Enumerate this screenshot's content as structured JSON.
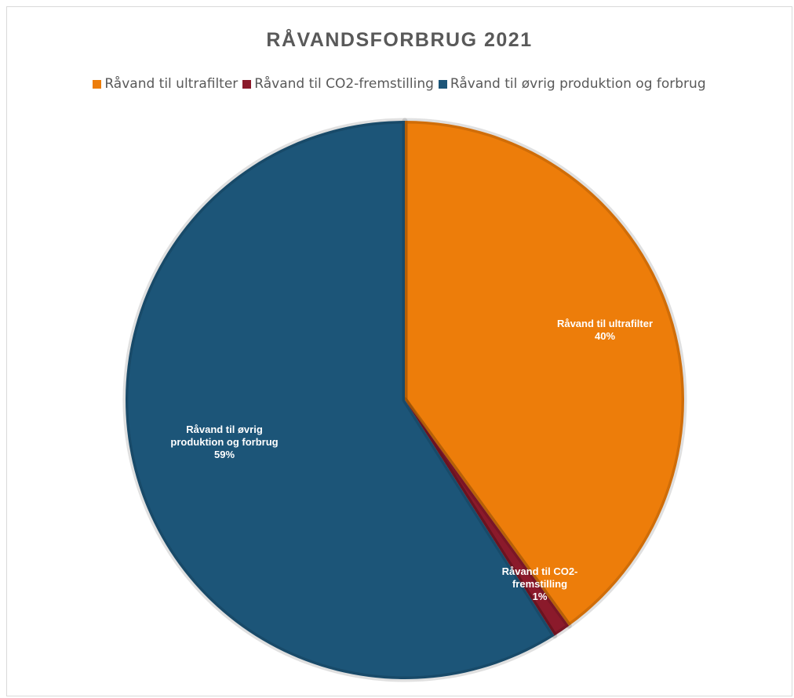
{
  "chart_data": {
    "type": "pie",
    "title": "RÅVANDSFORBRUG 2021",
    "legend_position": "top",
    "slices": [
      {
        "name": "Råvand til ultrafilter",
        "percent": 40,
        "percent_label": "40%",
        "label_lines": [
          "Råvand til ultrafilter"
        ],
        "color": "#ED7D0A"
      },
      {
        "name": "Råvand til CO2-fremstilling",
        "percent": 1,
        "percent_label": "1%",
        "label_lines": [
          "Råvand til CO2-",
          "fremstilling"
        ],
        "color": "#8B1A2B"
      },
      {
        "name": "Råvand til øvrig produktion og forbrug",
        "percent": 59,
        "percent_label": "59%",
        "label_lines": [
          "Råvand til øvrig",
          "produktion og forbrug"
        ],
        "color": "#1C5578"
      }
    ]
  }
}
